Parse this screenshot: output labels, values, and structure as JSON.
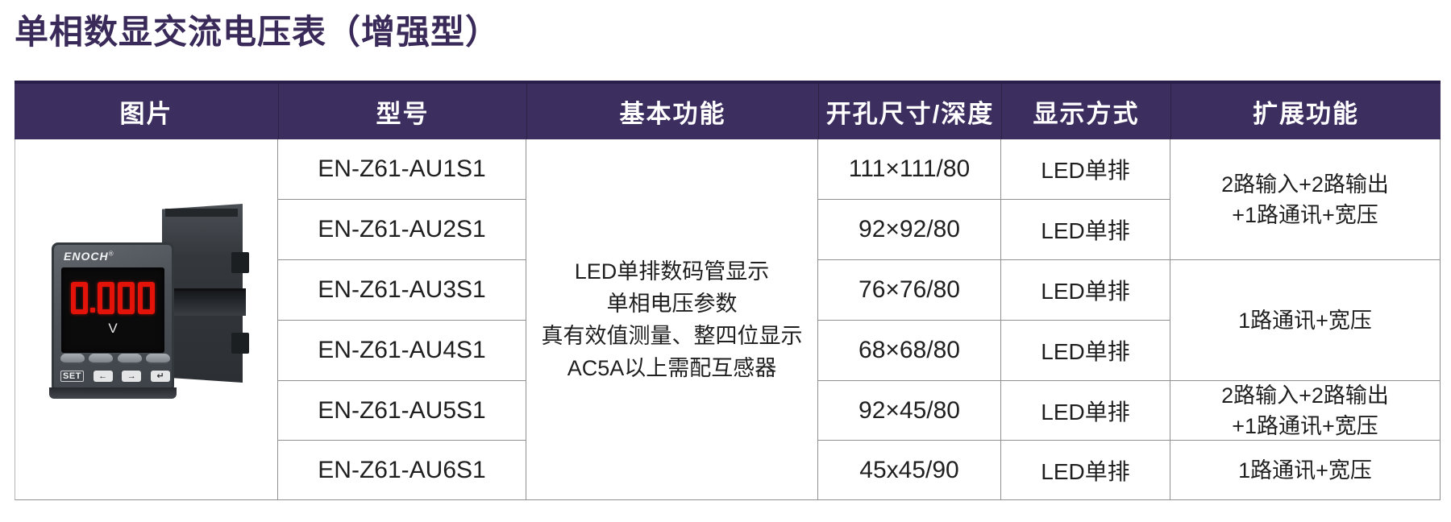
{
  "title": "单相数显交流电压表（增强型）",
  "table": {
    "headers": [
      "图片",
      "型号",
      "基本功能",
      "开孔尺寸/深度",
      "显示方式",
      "扩展功能"
    ],
    "basic_function": [
      "LED单排数码管显示",
      "单相电压参数",
      "真有效值测量、整四位显示",
      "AC5A以上需配互感器"
    ],
    "rows": [
      {
        "model": "EN-Z61-AU1S1",
        "cutout": "111×111/80",
        "display": "LED单排"
      },
      {
        "model": "EN-Z61-AU2S1",
        "cutout": "92×92/80",
        "display": "LED单排"
      },
      {
        "model": "EN-Z61-AU3S1",
        "cutout": "76×76/80",
        "display": "LED单排"
      },
      {
        "model": "EN-Z61-AU4S1",
        "cutout": "68×68/80",
        "display": "LED单排"
      },
      {
        "model": "EN-Z61-AU5S1",
        "cutout": "92×45/80",
        "display": "LED单排"
      },
      {
        "model": "EN-Z61-AU6S1",
        "cutout": "45x45/90",
        "display": "LED单排"
      }
    ],
    "extensions": [
      {
        "line1": "2路输入+2路输出",
        "line2": "+1路通讯+宽压"
      },
      {
        "line1": "1路通讯+宽压",
        "line2": ""
      },
      {
        "line1": "2路输入+2路输出",
        "line2": "+1路通讯+宽压"
      },
      {
        "line1": "1路通讯+宽压",
        "line2": ""
      }
    ]
  },
  "meter": {
    "brand": "ENOCH",
    "reg": "®",
    "value": "0.000",
    "unit": "V",
    "btn_set": "SET",
    "btn_left": "←",
    "btn_right": "→",
    "btn_enter": "↵"
  },
  "colors": {
    "header_bg": "#3d2e60",
    "header_top_edge": "#2a1f4b",
    "title_text": "#392a5a",
    "grid_line": "#909090",
    "led_red": "#e31309"
  }
}
